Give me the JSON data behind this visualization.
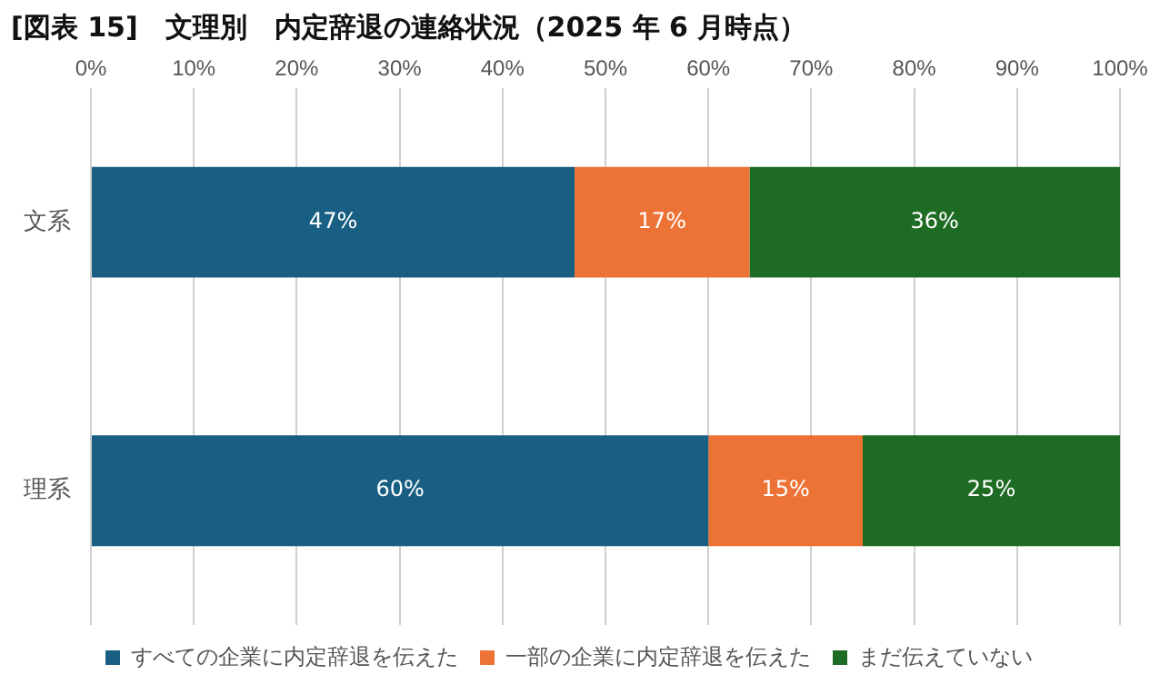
{
  "chart_data": {
    "type": "bar",
    "orientation": "horizontal",
    "stacked": true,
    "title": "[図表 15]　文理別　内定辞退の連絡状況（2025 年 6 月時点）",
    "categories": [
      "文系",
      "理系"
    ],
    "series": [
      {
        "name": "すべての企業に内定辞退を伝えた",
        "color": "#195e83",
        "values": [
          47,
          60
        ],
        "value_labels": [
          "47%",
          "60%"
        ]
      },
      {
        "name": "一部の企業に内定辞退を伝えた",
        "color": "#ec7235",
        "values": [
          17,
          15
        ],
        "value_labels": [
          "17%",
          "15%"
        ]
      },
      {
        "name": "まだ伝えていない",
        "color": "#1e6b24",
        "values": [
          36,
          25
        ],
        "value_labels": [
          "36%",
          "25%"
        ]
      }
    ],
    "xlim": [
      0,
      100
    ],
    "xticks": [
      {
        "value": 0,
        "label": "0%"
      },
      {
        "value": 10,
        "label": "10%"
      },
      {
        "value": 20,
        "label": "20%"
      },
      {
        "value": 30,
        "label": "30%"
      },
      {
        "value": 40,
        "label": "40%"
      },
      {
        "value": 50,
        "label": "50%"
      },
      {
        "value": 60,
        "label": "60%"
      },
      {
        "value": 70,
        "label": "70%"
      },
      {
        "value": 80,
        "label": "80%"
      },
      {
        "value": 90,
        "label": "90%"
      },
      {
        "value": 100,
        "label": "100%"
      }
    ],
    "grid": "x",
    "legend": "bottom"
  }
}
